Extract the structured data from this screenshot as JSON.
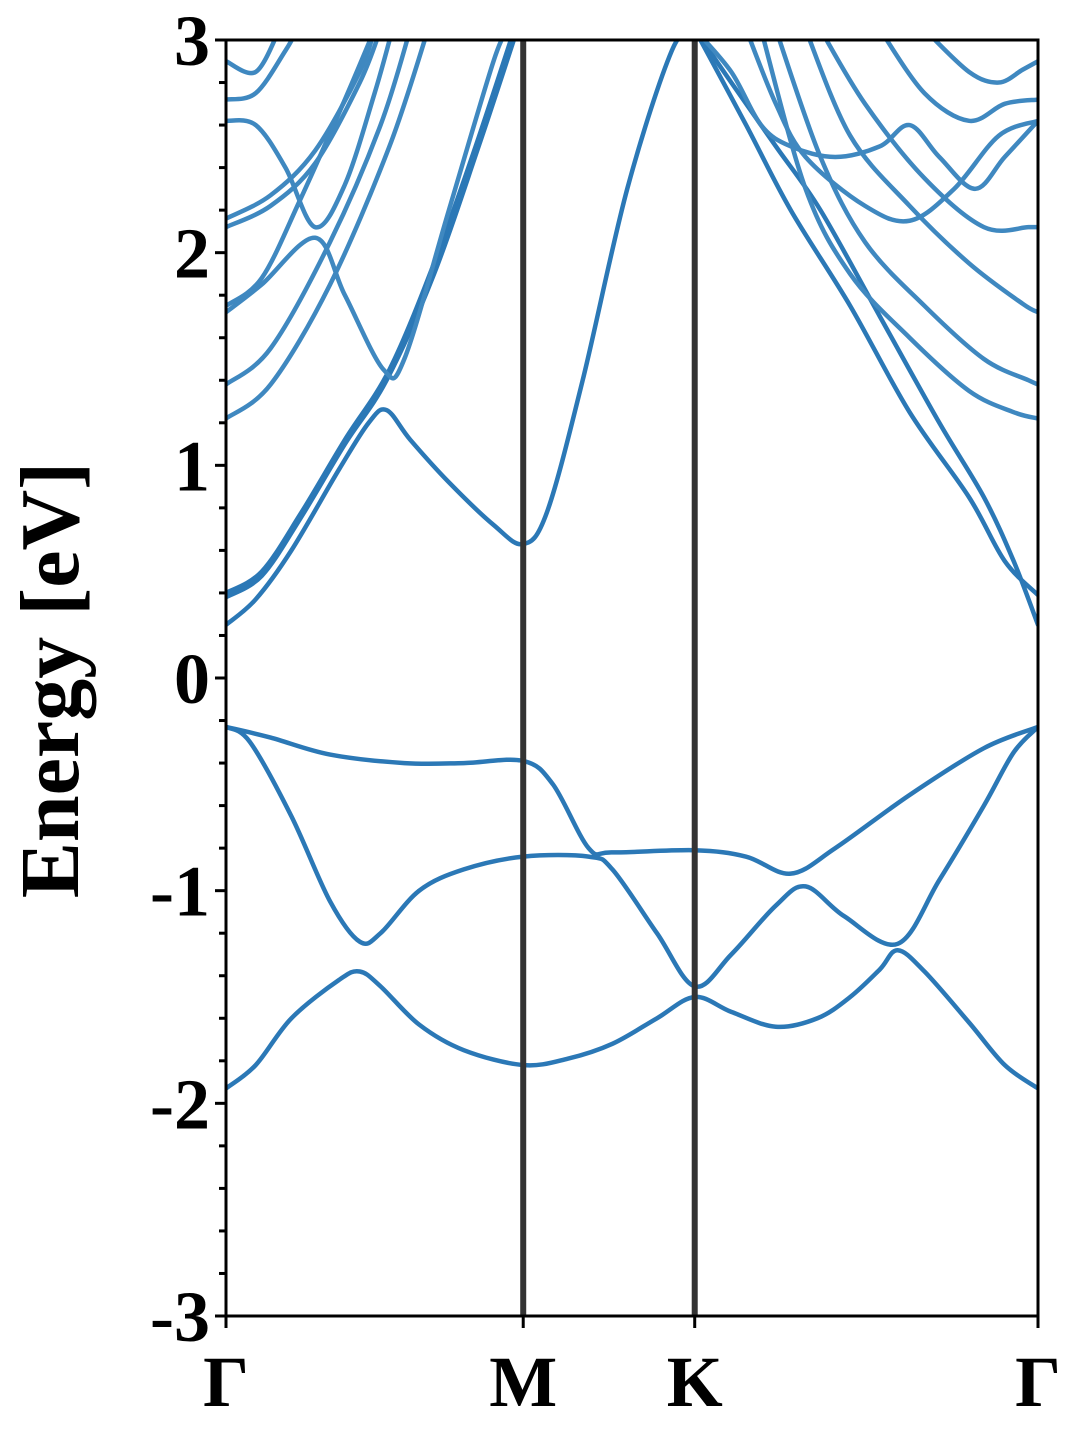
{
  "chart_data": {
    "type": "line",
    "ylabel": "Energy [eV]",
    "xlabel": "",
    "ylim": [
      -3,
      3
    ],
    "y_major_ticks": [
      -3,
      -2,
      -1,
      0,
      1,
      2,
      3
    ],
    "y_tick_labels": [
      "-3",
      "-2",
      "-1",
      "0",
      "1",
      "2",
      "3"
    ],
    "y_minor_step": 0.2,
    "high_symmetry_points": [
      {
        "label": "Γ",
        "k": 0.0
      },
      {
        "label": "M",
        "k": 1.0
      },
      {
        "label": "K",
        "k": 1.577
      },
      {
        "label": "Γ",
        "k": 2.732
      }
    ],
    "colors": {
      "band": "#2b78b6",
      "band_upper": "#3f88c0",
      "symmetry_line": "#333333",
      "axes": "#000000"
    },
    "grid": false,
    "series": [
      {
        "values": [
          [
            0,
            -1.93
          ],
          [
            0.1,
            -1.82
          ],
          [
            0.22,
            -1.6
          ],
          [
            0.38,
            -1.42
          ],
          [
            0.45,
            -1.38
          ],
          [
            0.52,
            -1.45
          ],
          [
            0.65,
            -1.63
          ],
          [
            0.8,
            -1.75
          ],
          [
            1.0,
            -1.82
          ],
          [
            1.15,
            -1.79
          ],
          [
            1.3,
            -1.72
          ],
          [
            1.45,
            -1.6
          ],
          [
            1.577,
            -1.5
          ],
          [
            1.7,
            -1.57
          ],
          [
            1.85,
            -1.64
          ],
          [
            1.99,
            -1.6
          ],
          [
            2.1,
            -1.5
          ],
          [
            2.2,
            -1.37
          ],
          [
            2.26,
            -1.28
          ],
          [
            2.35,
            -1.38
          ],
          [
            2.5,
            -1.62
          ],
          [
            2.62,
            -1.82
          ],
          [
            2.732,
            -1.93
          ]
        ]
      },
      {
        "values": [
          [
            0,
            -0.23
          ],
          [
            0.08,
            -0.3
          ],
          [
            0.22,
            -0.65
          ],
          [
            0.35,
            -1.05
          ],
          [
            0.45,
            -1.24
          ],
          [
            0.52,
            -1.2
          ],
          [
            0.65,
            -1.0
          ],
          [
            0.8,
            -0.9
          ],
          [
            1.0,
            -0.84
          ],
          [
            1.22,
            -0.84
          ],
          [
            1.3,
            -0.9
          ],
          [
            1.45,
            -1.2
          ],
          [
            1.577,
            -1.45
          ],
          [
            1.7,
            -1.3
          ],
          [
            1.85,
            -1.07
          ],
          [
            1.95,
            -0.98
          ],
          [
            2.08,
            -1.12
          ],
          [
            2.26,
            -1.25
          ],
          [
            2.4,
            -0.95
          ],
          [
            2.55,
            -0.6
          ],
          [
            2.65,
            -0.35
          ],
          [
            2.732,
            -0.23
          ]
        ]
      },
      {
        "values": [
          [
            0,
            -0.23
          ],
          [
            0.15,
            -0.28
          ],
          [
            0.35,
            -0.36
          ],
          [
            0.6,
            -0.4
          ],
          [
            0.8,
            -0.4
          ],
          [
            1.0,
            -0.39
          ],
          [
            1.1,
            -0.5
          ],
          [
            1.22,
            -0.8
          ],
          [
            1.3,
            -0.82
          ],
          [
            1.577,
            -0.81
          ],
          [
            1.75,
            -0.84
          ],
          [
            1.9,
            -0.92
          ],
          [
            2.05,
            -0.8
          ],
          [
            2.3,
            -0.55
          ],
          [
            2.55,
            -0.33
          ],
          [
            2.732,
            -0.23
          ]
        ]
      },
      {
        "values": [
          [
            0,
            0.25
          ],
          [
            0.1,
            0.37
          ],
          [
            0.22,
            0.6
          ],
          [
            0.38,
            0.98
          ],
          [
            0.48,
            1.2
          ],
          [
            0.54,
            1.26
          ],
          [
            0.62,
            1.12
          ],
          [
            0.75,
            0.92
          ],
          [
            0.9,
            0.72
          ],
          [
            1.0,
            0.63
          ],
          [
            1.08,
            0.78
          ],
          [
            1.2,
            1.4
          ],
          [
            1.35,
            2.3
          ],
          [
            1.5,
            2.95
          ],
          [
            1.577,
            3.05
          ]
        ]
      },
      {
        "values": [
          [
            0,
            0.38
          ],
          [
            0.12,
            0.48
          ],
          [
            0.25,
            0.75
          ],
          [
            0.4,
            1.1
          ],
          [
            0.54,
            1.4
          ],
          [
            0.7,
            1.9
          ],
          [
            0.85,
            2.5
          ],
          [
            0.98,
            3.05
          ]
        ]
      },
      {
        "values": [
          [
            0,
            0.4
          ],
          [
            0.12,
            0.5
          ],
          [
            0.25,
            0.77
          ],
          [
            0.4,
            1.12
          ],
          [
            0.55,
            1.45
          ],
          [
            0.7,
            1.95
          ],
          [
            0.84,
            2.5
          ],
          [
            0.97,
            3.05
          ]
        ]
      },
      {
        "values": [
          [
            0,
            1.22
          ],
          [
            0.15,
            1.38
          ],
          [
            0.35,
            1.85
          ],
          [
            0.55,
            2.5
          ],
          [
            0.68,
            3.05
          ]
        ]
      },
      {
        "values": [
          [
            0,
            1.38
          ],
          [
            0.15,
            1.55
          ],
          [
            0.35,
            2.05
          ],
          [
            0.52,
            2.6
          ],
          [
            0.62,
            3.05
          ]
        ]
      },
      {
        "values": [
          [
            0,
            1.72
          ],
          [
            0.12,
            1.85
          ],
          [
            0.3,
            2.07
          ],
          [
            0.4,
            1.8
          ],
          [
            0.53,
            1.45
          ],
          [
            0.6,
            1.5
          ],
          [
            0.75,
            2.2
          ],
          [
            0.9,
            2.9
          ],
          [
            0.95,
            3.05
          ]
        ]
      },
      {
        "values": [
          [
            0,
            1.75
          ],
          [
            0.12,
            1.88
          ],
          [
            0.25,
            2.25
          ],
          [
            0.4,
            2.72
          ],
          [
            0.5,
            3.05
          ]
        ]
      },
      {
        "values": [
          [
            0,
            2.12
          ],
          [
            0.15,
            2.22
          ],
          [
            0.3,
            2.42
          ],
          [
            0.45,
            2.8
          ],
          [
            0.52,
            3.05
          ]
        ]
      },
      {
        "values": [
          [
            0,
            2.16
          ],
          [
            0.15,
            2.27
          ],
          [
            0.3,
            2.48
          ],
          [
            0.45,
            2.85
          ],
          [
            0.5,
            3.05
          ]
        ]
      },
      {
        "values": [
          [
            0,
            2.62
          ],
          [
            0.1,
            2.6
          ],
          [
            0.2,
            2.4
          ],
          [
            0.3,
            2.12
          ],
          [
            0.4,
            2.32
          ],
          [
            0.5,
            2.75
          ],
          [
            0.56,
            3.05
          ]
        ]
      },
      {
        "values": [
          [
            0,
            2.72
          ],
          [
            0.1,
            2.75
          ],
          [
            0.2,
            2.95
          ],
          [
            0.24,
            3.05
          ]
        ]
      },
      {
        "values": [
          [
            0,
            2.9
          ],
          [
            0.1,
            2.85
          ],
          [
            0.18,
            3.05
          ]
        ]
      },
      {
        "values": [
          [
            1.577,
            3.05
          ],
          [
            1.7,
            2.8
          ],
          [
            1.85,
            2.5
          ],
          [
            2.0,
            2.2
          ],
          [
            2.2,
            1.7
          ],
          [
            2.4,
            1.2
          ],
          [
            2.55,
            0.85
          ],
          [
            2.65,
            0.55
          ],
          [
            2.732,
            0.25
          ]
        ]
      },
      {
        "values": [
          [
            1.577,
            3.05
          ],
          [
            1.75,
            2.6
          ],
          [
            1.9,
            2.2
          ],
          [
            2.1,
            1.75
          ],
          [
            2.3,
            1.25
          ],
          [
            2.5,
            0.85
          ],
          [
            2.62,
            0.55
          ],
          [
            2.732,
            0.39
          ]
        ]
      },
      {
        "values": [
          [
            1.577,
            3.05
          ],
          [
            1.7,
            2.85
          ],
          [
            1.8,
            2.6
          ],
          [
            1.9,
            2.5
          ],
          [
            2.05,
            2.45
          ],
          [
            2.2,
            2.5
          ],
          [
            2.3,
            2.6
          ],
          [
            2.4,
            2.45
          ],
          [
            2.52,
            2.3
          ],
          [
            2.62,
            2.45
          ],
          [
            2.732,
            2.62
          ]
        ]
      },
      {
        "values": [
          [
            1.75,
            3.05
          ],
          [
            1.85,
            2.7
          ],
          [
            1.95,
            2.45
          ],
          [
            2.15,
            2.22
          ],
          [
            2.3,
            2.15
          ],
          [
            2.45,
            2.3
          ],
          [
            2.6,
            2.55
          ],
          [
            2.732,
            2.62
          ]
        ]
      },
      {
        "values": [
          [
            1.8,
            3.05
          ],
          [
            1.95,
            2.3
          ],
          [
            2.1,
            1.9
          ],
          [
            2.3,
            1.6
          ],
          [
            2.5,
            1.35
          ],
          [
            2.65,
            1.25
          ],
          [
            2.732,
            1.22
          ]
        ]
      },
      {
        "values": [
          [
            1.85,
            3.05
          ],
          [
            2.0,
            2.45
          ],
          [
            2.15,
            2.05
          ],
          [
            2.35,
            1.75
          ],
          [
            2.55,
            1.5
          ],
          [
            2.7,
            1.4
          ],
          [
            2.732,
            1.38
          ]
        ]
      },
      {
        "values": [
          [
            1.95,
            3.05
          ],
          [
            2.1,
            2.55
          ],
          [
            2.3,
            2.22
          ],
          [
            2.5,
            1.95
          ],
          [
            2.68,
            1.76
          ],
          [
            2.732,
            1.72
          ]
        ]
      },
      {
        "values": [
          [
            2.0,
            3.05
          ],
          [
            2.15,
            2.7
          ],
          [
            2.35,
            2.35
          ],
          [
            2.55,
            2.12
          ],
          [
            2.7,
            2.12
          ],
          [
            2.732,
            2.12
          ]
        ]
      },
      {
        "values": [
          [
            2.2,
            3.05
          ],
          [
            2.35,
            2.75
          ],
          [
            2.5,
            2.62
          ],
          [
            2.62,
            2.7
          ],
          [
            2.732,
            2.72
          ]
        ]
      },
      {
        "values": [
          [
            2.35,
            3.05
          ],
          [
            2.5,
            2.85
          ],
          [
            2.6,
            2.8
          ],
          [
            2.68,
            2.86
          ],
          [
            2.732,
            2.9
          ]
        ]
      }
    ]
  }
}
